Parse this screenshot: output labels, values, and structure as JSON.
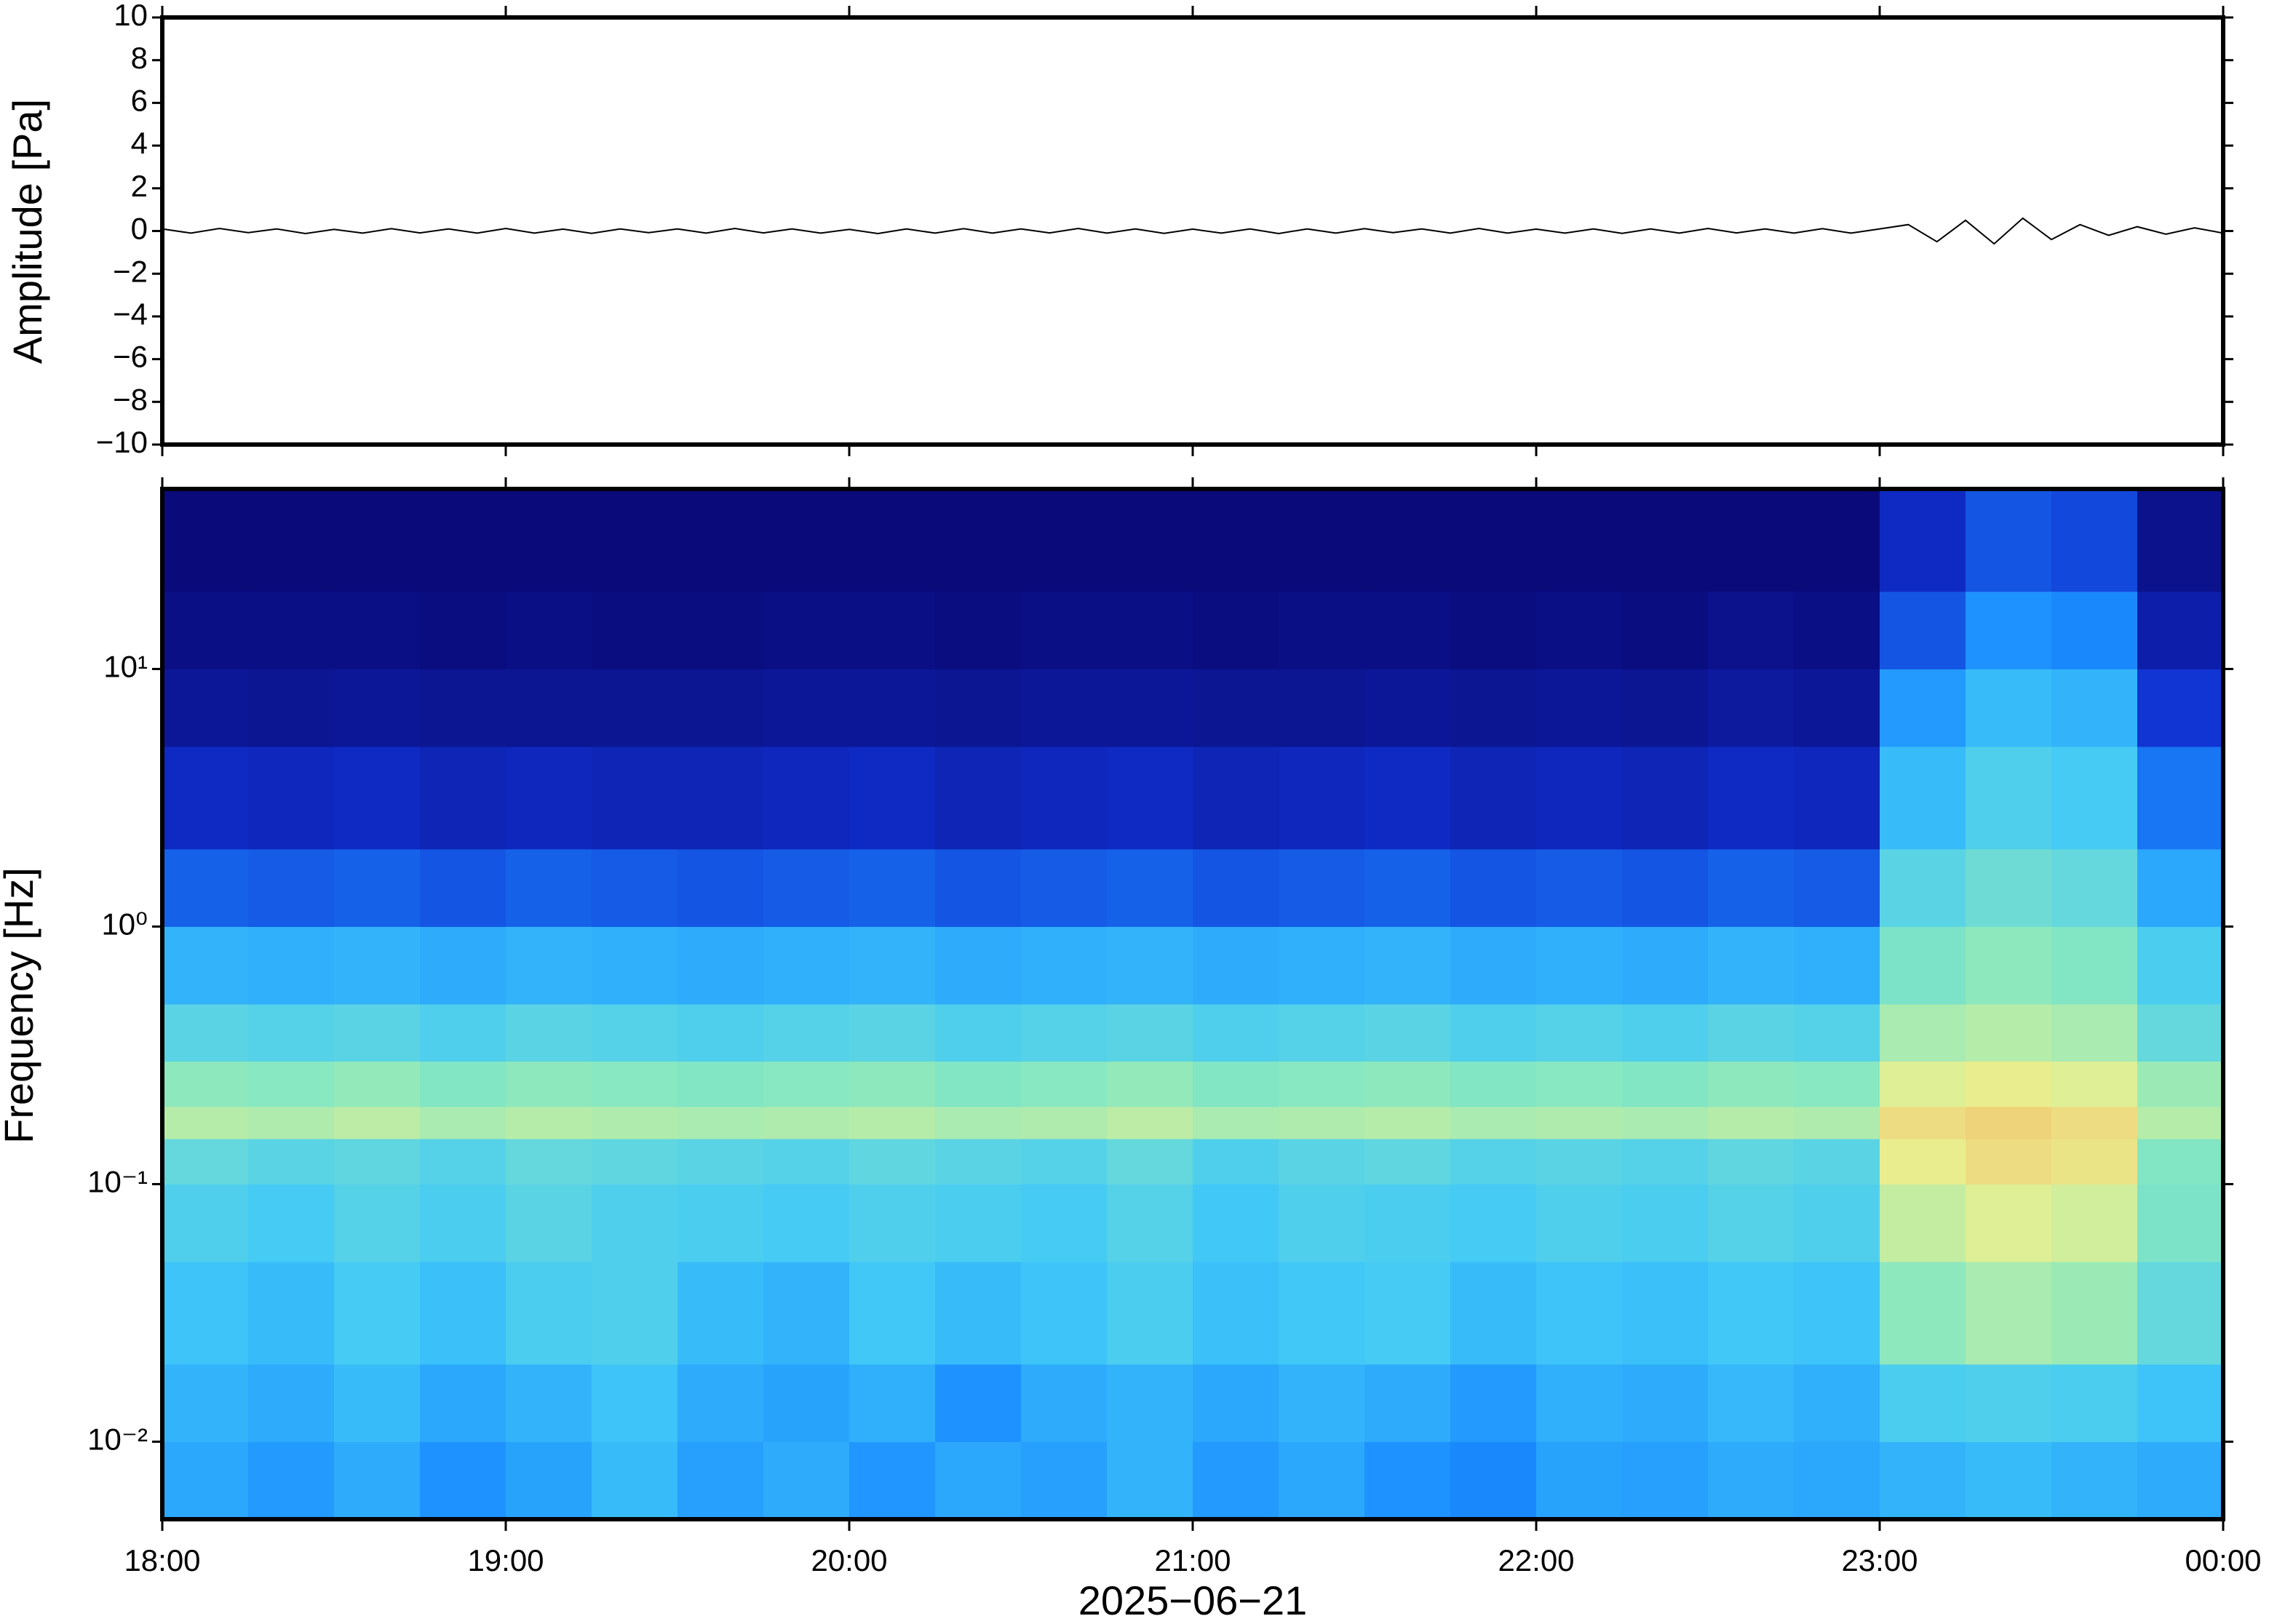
{
  "chart_data": [
    {
      "type": "line",
      "ylabel": "Amplitude [Pa]",
      "xlim": [
        0,
        360
      ],
      "ylim": [
        -10,
        10
      ],
      "yticks": [
        {
          "value": -10,
          "label": "−10"
        },
        {
          "value": -8,
          "label": "−8"
        },
        {
          "value": -6,
          "label": "−6"
        },
        {
          "value": -4,
          "label": "−4"
        },
        {
          "value": -2,
          "label": "−2"
        },
        0,
        2,
        4,
        6,
        8,
        10
      ],
      "series": [
        {
          "color": "#000000",
          "x": [
            0,
            5,
            10,
            15,
            20,
            25,
            30,
            35,
            40,
            45,
            50,
            55,
            60,
            65,
            70,
            75,
            80,
            85,
            90,
            95,
            100,
            105,
            110,
            115,
            120,
            125,
            130,
            135,
            140,
            145,
            150,
            155,
            160,
            165,
            170,
            175,
            180,
            185,
            190,
            195,
            200,
            205,
            210,
            215,
            220,
            225,
            230,
            235,
            240,
            245,
            250,
            255,
            260,
            265,
            270,
            275,
            280,
            285,
            290,
            295,
            300,
            305,
            310,
            315,
            320,
            325,
            330,
            335,
            340,
            345,
            350,
            355,
            360
          ],
          "values": [
            0.1,
            -0.1,
            0.12,
            -0.08,
            0.1,
            -0.12,
            0.08,
            -0.1,
            0.11,
            -0.09,
            0.1,
            -0.1,
            0.12,
            -0.1,
            0.09,
            -0.11,
            0.1,
            -0.08,
            0.1,
            -0.1,
            0.12,
            -0.09,
            0.1,
            -0.1,
            0.08,
            -0.12,
            0.1,
            -0.1,
            0.11,
            -0.1,
            0.1,
            -0.09,
            0.12,
            -0.1,
            0.1,
            -0.11,
            0.09,
            -0.1,
            0.1,
            -0.12,
            0.1,
            -0.1,
            0.11,
            -0.08,
            0.1,
            -0.1,
            0.12,
            -0.1,
            0.09,
            -0.1,
            0.1,
            -0.11,
            0.1,
            -0.1,
            0.12,
            -0.09,
            0.1,
            -0.1,
            0.11,
            -0.1,
            0.1,
            0.3,
            -0.5,
            0.5,
            -0.6,
            0.6,
            -0.4,
            0.3,
            -0.2,
            0.2,
            -0.15,
            0.15,
            -0.1
          ]
        }
      ]
    },
    {
      "type": "heatmap",
      "ylabel": "Frequency [Hz]",
      "xlabel": "2025−06−21",
      "xlim": [
        0,
        360
      ],
      "xticks": [
        {
          "value": 0,
          "label": "18:00"
        },
        {
          "value": 60,
          "label": "19:00"
        },
        {
          "value": 120,
          "label": "20:00"
        },
        {
          "value": 180,
          "label": "21:00"
        },
        {
          "value": 240,
          "label": "22:00"
        },
        {
          "value": 300,
          "label": "23:00"
        },
        {
          "value": 360,
          "label": "00:00"
        }
      ],
      "ylim": [
        0.005,
        50
      ],
      "ylog": true,
      "yticks": [
        {
          "value": 0.01,
          "label": "10⁻²"
        },
        {
          "value": 0.1,
          "label": "10⁻¹"
        },
        {
          "value": 1,
          "label": "10⁰"
        },
        {
          "value": 10,
          "label": "10¹"
        }
      ],
      "colormap": [
        "#0a0a7a",
        "#1030d0",
        "#1a8cff",
        "#40c8f8",
        "#88e8c0",
        "#e8f090",
        "#f8b060",
        "#f06040"
      ],
      "x": [
        0,
        15,
        30,
        45,
        60,
        75,
        90,
        105,
        120,
        135,
        150,
        165,
        180,
        195,
        210,
        225,
        240,
        255,
        270,
        285,
        300,
        315,
        330,
        345,
        360
      ],
      "y": [
        0.005,
        0.01,
        0.02,
        0.05,
        0.1,
        0.15,
        0.2,
        0.3,
        0.5,
        1,
        2,
        5,
        10,
        20,
        50
      ],
      "z": [
        [
          0.35,
          0.32,
          0.36,
          0.3,
          0.34,
          0.4,
          0.33,
          0.36,
          0.31,
          0.35,
          0.33,
          0.38,
          0.32,
          0.35,
          0.3,
          0.28,
          0.34,
          0.33,
          0.36,
          0.35,
          0.38,
          0.4,
          0.38,
          0.36
        ],
        [
          0.38,
          0.36,
          0.4,
          0.35,
          0.38,
          0.42,
          0.36,
          0.34,
          0.37,
          0.3,
          0.36,
          0.38,
          0.35,
          0.38,
          0.36,
          0.32,
          0.37,
          0.36,
          0.39,
          0.37,
          0.45,
          0.46,
          0.45,
          0.42
        ],
        [
          0.42,
          0.4,
          0.44,
          0.41,
          0.45,
          0.46,
          0.4,
          0.38,
          0.43,
          0.4,
          0.42,
          0.45,
          0.41,
          0.43,
          0.44,
          0.4,
          0.42,
          0.41,
          0.43,
          0.42,
          0.58,
          0.62,
          0.6,
          0.5
        ],
        [
          0.46,
          0.44,
          0.47,
          0.45,
          0.48,
          0.46,
          0.45,
          0.44,
          0.46,
          0.45,
          0.44,
          0.47,
          0.43,
          0.46,
          0.45,
          0.44,
          0.46,
          0.45,
          0.47,
          0.46,
          0.66,
          0.7,
          0.68,
          0.55
        ],
        [
          0.5,
          0.48,
          0.49,
          0.47,
          0.5,
          0.49,
          0.48,
          0.47,
          0.49,
          0.48,
          0.47,
          0.5,
          0.46,
          0.48,
          0.49,
          0.47,
          0.48,
          0.47,
          0.49,
          0.48,
          0.72,
          0.76,
          0.74,
          0.56
        ],
        [
          0.64,
          0.63,
          0.65,
          0.62,
          0.64,
          0.63,
          0.62,
          0.63,
          0.64,
          0.62,
          0.63,
          0.65,
          0.62,
          0.63,
          0.64,
          0.62,
          0.63,
          0.62,
          0.64,
          0.63,
          0.76,
          0.78,
          0.76,
          0.64
        ],
        [
          0.58,
          0.57,
          0.59,
          0.56,
          0.58,
          0.57,
          0.56,
          0.57,
          0.58,
          0.56,
          0.57,
          0.59,
          0.56,
          0.57,
          0.58,
          0.56,
          0.57,
          0.56,
          0.58,
          0.57,
          0.7,
          0.72,
          0.7,
          0.6
        ],
        [
          0.48,
          0.47,
          0.48,
          0.46,
          0.48,
          0.47,
          0.46,
          0.47,
          0.48,
          0.46,
          0.47,
          0.48,
          0.46,
          0.47,
          0.48,
          0.46,
          0.47,
          0.46,
          0.48,
          0.47,
          0.62,
          0.64,
          0.62,
          0.5
        ],
        [
          0.38,
          0.37,
          0.38,
          0.36,
          0.38,
          0.37,
          0.36,
          0.37,
          0.38,
          0.36,
          0.37,
          0.38,
          0.36,
          0.37,
          0.38,
          0.36,
          0.37,
          0.36,
          0.38,
          0.37,
          0.55,
          0.58,
          0.56,
          0.45
        ],
        [
          0.22,
          0.21,
          0.22,
          0.2,
          0.22,
          0.21,
          0.2,
          0.21,
          0.22,
          0.2,
          0.21,
          0.22,
          0.2,
          0.21,
          0.22,
          0.2,
          0.21,
          0.2,
          0.22,
          0.21,
          0.48,
          0.52,
          0.5,
          0.35
        ],
        [
          0.12,
          0.11,
          0.12,
          0.1,
          0.11,
          0.1,
          0.1,
          0.11,
          0.12,
          0.1,
          0.11,
          0.12,
          0.1,
          0.11,
          0.12,
          0.1,
          0.11,
          0.1,
          0.12,
          0.11,
          0.4,
          0.46,
          0.44,
          0.25
        ],
        [
          0.05,
          0.04,
          0.05,
          0.04,
          0.04,
          0.04,
          0.04,
          0.05,
          0.05,
          0.04,
          0.05,
          0.05,
          0.04,
          0.04,
          0.05,
          0.04,
          0.05,
          0.04,
          0.06,
          0.05,
          0.32,
          0.4,
          0.38,
          0.15
        ],
        [
          0.02,
          0.02,
          0.02,
          0.01,
          0.02,
          0.01,
          0.01,
          0.02,
          0.02,
          0.01,
          0.02,
          0.02,
          0.01,
          0.02,
          0.02,
          0.01,
          0.02,
          0.01,
          0.03,
          0.02,
          0.2,
          0.3,
          0.28,
          0.08
        ],
        [
          0,
          0,
          0,
          0,
          0,
          0,
          0,
          0,
          0,
          0,
          0,
          0,
          0,
          0,
          0,
          0,
          0,
          0,
          0,
          0,
          0.12,
          0.2,
          0.18,
          0.03
        ]
      ]
    }
  ]
}
